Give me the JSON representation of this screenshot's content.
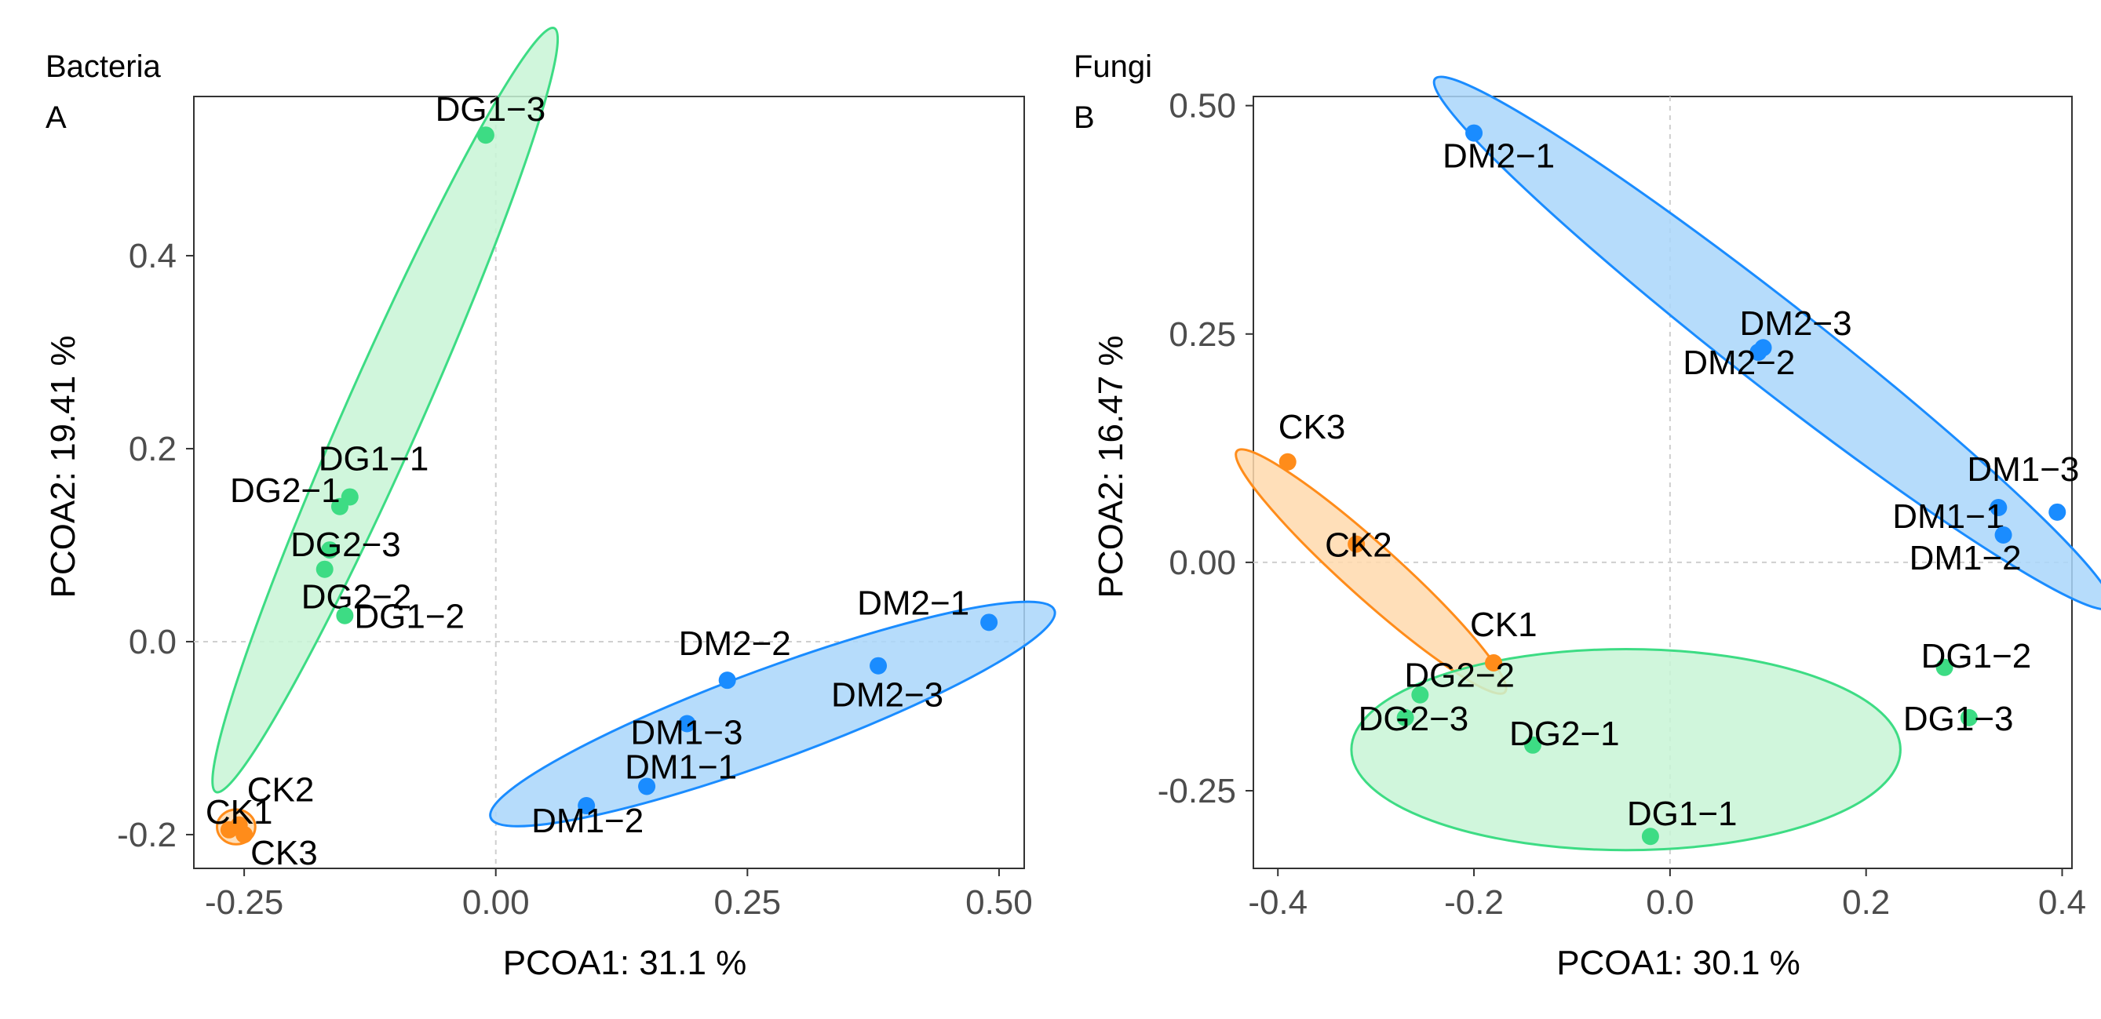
{
  "chart_data": [
    {
      "type": "scatter",
      "panel_title": "Bacteria",
      "panel_letter": "A",
      "xlabel": "PCOA1:  31.1 %",
      "ylabel": "PCOA2:  19.41 %",
      "xlim": [
        -0.3,
        0.525
      ],
      "ylim": [
        -0.235,
        0.565
      ],
      "xticks": [
        -0.25,
        0,
        0.25,
        0.5
      ],
      "xtick_labels": [
        "-0.25",
        "0.00",
        "0.25",
        "0.50"
      ],
      "yticks": [
        -0.2,
        0,
        0.2,
        0.4
      ],
      "ytick_labels": [
        "-0.2",
        "0.0",
        "0.2",
        "0.4"
      ],
      "zero_lines": true,
      "groups": [
        {
          "name": "DG",
          "color": "#3ddc84",
          "fill": "#c8f5d6",
          "ellipse": {
            "cx": -0.11,
            "cy": 0.24,
            "rx": 0.43,
            "ry": 0.038,
            "angle_deg": 67
          }
        },
        {
          "name": "DM",
          "color": "#1a8cff",
          "fill": "#a9d6fa",
          "ellipse": {
            "cx": 0.275,
            "cy": -0.075,
            "rx": 0.3,
            "ry": 0.047,
            "angle_deg": 21
          }
        },
        {
          "name": "CK",
          "color": "#ff8c1a",
          "fill": "#ffd9ad",
          "ellipse": {
            "cx": -0.258,
            "cy": -0.192,
            "rx": 0.019,
            "ry": 0.018,
            "angle_deg": 0
          }
        }
      ],
      "points": [
        {
          "label": "DG1−3",
          "group": "DG",
          "x": -0.01,
          "y": 0.525
        },
        {
          "label": "DG1−1",
          "group": "DG",
          "x": -0.145,
          "y": 0.15
        },
        {
          "label": "DG2−1",
          "group": "DG",
          "x": -0.155,
          "y": 0.14
        },
        {
          "label": "DG2−3",
          "group": "DG",
          "x": -0.165,
          "y": 0.095
        },
        {
          "label": "DG2−2",
          "group": "DG",
          "x": -0.17,
          "y": 0.075
        },
        {
          "label": "DG1−2",
          "group": "DG",
          "x": -0.15,
          "y": 0.027
        },
        {
          "label": "DM2−1",
          "group": "DM",
          "x": 0.49,
          "y": 0.02
        },
        {
          "label": "DM2−2",
          "group": "DM",
          "x": 0.23,
          "y": -0.04
        },
        {
          "label": "DM2−3",
          "group": "DM",
          "x": 0.38,
          "y": -0.025
        },
        {
          "label": "DM1−3",
          "group": "DM",
          "x": 0.19,
          "y": -0.085
        },
        {
          "label": "DM1−1",
          "group": "DM",
          "x": 0.15,
          "y": -0.15
        },
        {
          "label": "DM1−2",
          "group": "DM",
          "x": 0.09,
          "y": -0.17
        },
        {
          "label": "CK2",
          "group": "CK",
          "x": -0.255,
          "y": -0.19
        },
        {
          "label": "CK1",
          "group": "CK",
          "x": -0.265,
          "y": -0.195
        },
        {
          "label": "CK3",
          "group": "CK",
          "x": -0.25,
          "y": -0.2
        }
      ]
    },
    {
      "type": "scatter",
      "panel_title": "Fungi",
      "panel_letter": "B",
      "xlabel": "PCOA1:  30.1 %",
      "ylabel": "PCOA2:  16.47 %",
      "xlim": [
        -0.425,
        0.41
      ],
      "ylim": [
        -0.335,
        0.51
      ],
      "xticks": [
        -0.4,
        -0.2,
        0,
        0.2,
        0.4
      ],
      "xtick_labels": [
        "-0.4",
        "-0.2",
        "0.0",
        "0.2",
        "0.4"
      ],
      "yticks": [
        -0.25,
        0,
        0.25,
        0.5
      ],
      "ytick_labels": [
        "-0.25",
        "0.00",
        "0.25",
        "0.50"
      ],
      "zero_lines": true,
      "groups": [
        {
          "name": "DM",
          "color": "#1a8cff",
          "fill": "#a9d6fa",
          "ellipse": {
            "cx": 0.105,
            "cy": 0.24,
            "rx": 0.45,
            "ry": 0.045,
            "angle_deg": -40
          }
        },
        {
          "name": "CK",
          "color": "#ff8c1a",
          "fill": "#ffd9ad",
          "ellipse": {
            "cx": -0.305,
            "cy": -0.01,
            "rx": 0.19,
            "ry": 0.028,
            "angle_deg": -44
          }
        },
        {
          "name": "DG",
          "color": "#3ddc84",
          "fill": "#c8f5d6",
          "ellipse": {
            "cx": -0.045,
            "cy": -0.205,
            "rx": 0.28,
            "ry": 0.11,
            "angle_deg": 0
          }
        }
      ],
      "points": [
        {
          "label": "DM2−1",
          "group": "DM",
          "x": -0.2,
          "y": 0.47
        },
        {
          "label": "DM2−3",
          "group": "DM",
          "x": 0.095,
          "y": 0.235
        },
        {
          "label": "DM2−2",
          "group": "DM",
          "x": 0.09,
          "y": 0.23
        },
        {
          "label": "DM1−3",
          "group": "DM",
          "x": 0.335,
          "y": 0.06
        },
        {
          "label": "DM1−1",
          "group": "DM",
          "x": 0.395,
          "y": 0.055
        },
        {
          "label": "DM1−2",
          "group": "DM",
          "x": 0.34,
          "y": 0.03
        },
        {
          "label": "CK3",
          "group": "CK",
          "x": -0.39,
          "y": 0.11
        },
        {
          "label": "CK2",
          "group": "CK",
          "x": -0.32,
          "y": 0.02
        },
        {
          "label": "CK1",
          "group": "CK",
          "x": -0.18,
          "y": -0.11
        },
        {
          "label": "DG2−2",
          "group": "DG",
          "x": -0.255,
          "y": -0.145
        },
        {
          "label": "DG2−3",
          "group": "DG",
          "x": -0.27,
          "y": -0.17
        },
        {
          "label": "DG2−1",
          "group": "DG",
          "x": -0.14,
          "y": -0.2
        },
        {
          "label": "DG1−2",
          "group": "DG",
          "x": 0.28,
          "y": -0.115
        },
        {
          "label": "DG1−3",
          "group": "DG",
          "x": 0.305,
          "y": -0.17
        },
        {
          "label": "DG1−1",
          "group": "DG",
          "x": -0.02,
          "y": -0.3
        }
      ]
    }
  ]
}
